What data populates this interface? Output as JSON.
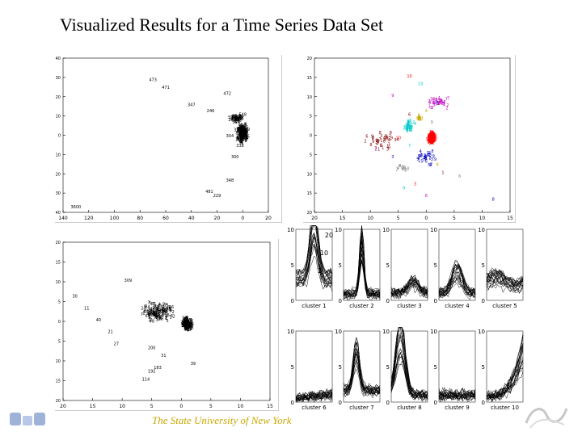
{
  "slide": {
    "title": "Visualized Results for a Time Series Data Set",
    "footer": "The State University of New York"
  },
  "colors": {
    "accent": "#c8a800",
    "cluster_main": "#ff0000",
    "ink": "#000000"
  },
  "chart_data": [
    {
      "type": "scatter",
      "title": "",
      "xlabel": "",
      "ylabel": "",
      "x_ticks": [
        "140",
        "120",
        "100",
        "80",
        "60",
        "40",
        "20",
        "0",
        "20"
      ],
      "y_ticks": [
        "40",
        "30",
        "20",
        "10",
        "0",
        "10",
        "20",
        "30",
        "40"
      ],
      "labels": [
        "473",
        "471",
        "472",
        "347",
        "246",
        "548",
        "324",
        "323",
        "304",
        "338",
        "300",
        "348",
        "481",
        "229",
        "3600"
      ],
      "points": [
        [
          -70,
          28
        ],
        [
          -60,
          24
        ],
        [
          -12,
          21
        ],
        [
          -40,
          15
        ],
        [
          -25,
          12
        ],
        [
          0,
          10
        ],
        [
          -5,
          6
        ],
        [
          -4,
          2
        ],
        [
          -10,
          -1
        ],
        [
          -2,
          -6
        ],
        [
          -6,
          -12
        ],
        [
          -10,
          -24
        ],
        [
          -26,
          -30
        ],
        [
          -20,
          -32
        ],
        [
          -130,
          -38
        ]
      ]
    },
    {
      "type": "scatter",
      "title": "",
      "xlabel": "",
      "ylabel": "",
      "x_ticks": [
        "20",
        "15",
        "10",
        "5",
        "0",
        "5",
        "10",
        "15"
      ],
      "y_ticks": [
        "20",
        "15",
        "10",
        "5",
        "0",
        "5",
        "10",
        "15",
        "20"
      ],
      "labels": [
        "10",
        "10",
        "9",
        "5",
        "4",
        "6",
        "9",
        "10",
        "7",
        "2",
        "3",
        "8",
        "1",
        "6",
        "3",
        "9",
        "6",
        "8"
      ],
      "points": [
        [
          -3,
          15
        ],
        [
          -1,
          13
        ],
        [
          -6,
          10
        ],
        [
          2,
          8
        ],
        [
          0,
          6
        ],
        [
          -3,
          5
        ],
        [
          1,
          3
        ],
        [
          -5,
          -1
        ],
        [
          -3,
          -3
        ],
        [
          -9,
          -4
        ],
        [
          -6,
          -6
        ],
        [
          2,
          -8
        ],
        [
          3,
          -10
        ],
        [
          6,
          -11
        ],
        [
          -2,
          -13
        ],
        [
          -4,
          -14
        ],
        [
          0,
          -16
        ],
        [
          12,
          -17
        ]
      ],
      "cluster_colors": [
        "#ff0000",
        "#00c8c8",
        "#c000c0",
        "#0000c0",
        "#c8a800",
        "#800000",
        "#808080"
      ]
    },
    {
      "type": "scatter",
      "title": "",
      "xlabel": "",
      "ylabel": "",
      "x_ticks": [
        "20",
        "15",
        "10",
        "5",
        "0",
        "5",
        "10",
        "15"
      ],
      "y_ticks": [
        "20",
        "15",
        "10",
        "5",
        "0",
        "5",
        "10",
        "15",
        "20"
      ],
      "labels": [
        "309",
        "30",
        "11",
        "40",
        "21",
        "27",
        "200",
        "31",
        "39",
        "183",
        "192",
        "114"
      ],
      "points": [
        [
          -9,
          10
        ],
        [
          -18,
          6
        ],
        [
          -16,
          3
        ],
        [
          -14,
          0
        ],
        [
          -12,
          -3
        ],
        [
          -11,
          -6
        ],
        [
          -5,
          -7
        ],
        [
          -3,
          -9
        ],
        [
          2,
          -11
        ],
        [
          -4,
          -12
        ],
        [
          -5,
          -13
        ],
        [
          -6,
          -15
        ]
      ]
    },
    {
      "type": "line",
      "title": "",
      "panels": [
        {
          "label": "cluster 1",
          "y_ticks": [
            "10",
            "5",
            "0"
          ],
          "annotations": [
            "20",
            "10",
            "1"
          ]
        },
        {
          "label": "cluster 2",
          "y_ticks": [
            "10",
            "5",
            "0"
          ],
          "annotations": []
        },
        {
          "label": "cluster 3",
          "y_ticks": [
            "10",
            "5",
            "0"
          ],
          "annotations": []
        },
        {
          "label": "cluster 4",
          "y_ticks": [
            "10",
            "5",
            "0"
          ],
          "annotations": []
        },
        {
          "label": "cluster 5",
          "y_ticks": [
            "10",
            "5",
            "0"
          ],
          "annotations": []
        },
        {
          "label": "cluster 6",
          "y_ticks": [
            "10",
            "5",
            "0"
          ],
          "annotations": []
        },
        {
          "label": "cluster 7",
          "y_ticks": [
            "10",
            "5",
            "0"
          ],
          "annotations": []
        },
        {
          "label": "cluster 8",
          "y_ticks": [
            "10",
            "5",
            "0"
          ],
          "annotations": []
        },
        {
          "label": "cluster 9",
          "y_ticks": [
            "10",
            "5",
            "0"
          ],
          "annotations": []
        },
        {
          "label": "cluster 10",
          "y_ticks": [
            "10",
            "5",
            "0"
          ],
          "annotations": []
        }
      ],
      "ylim": [
        0,
        10
      ]
    }
  ]
}
